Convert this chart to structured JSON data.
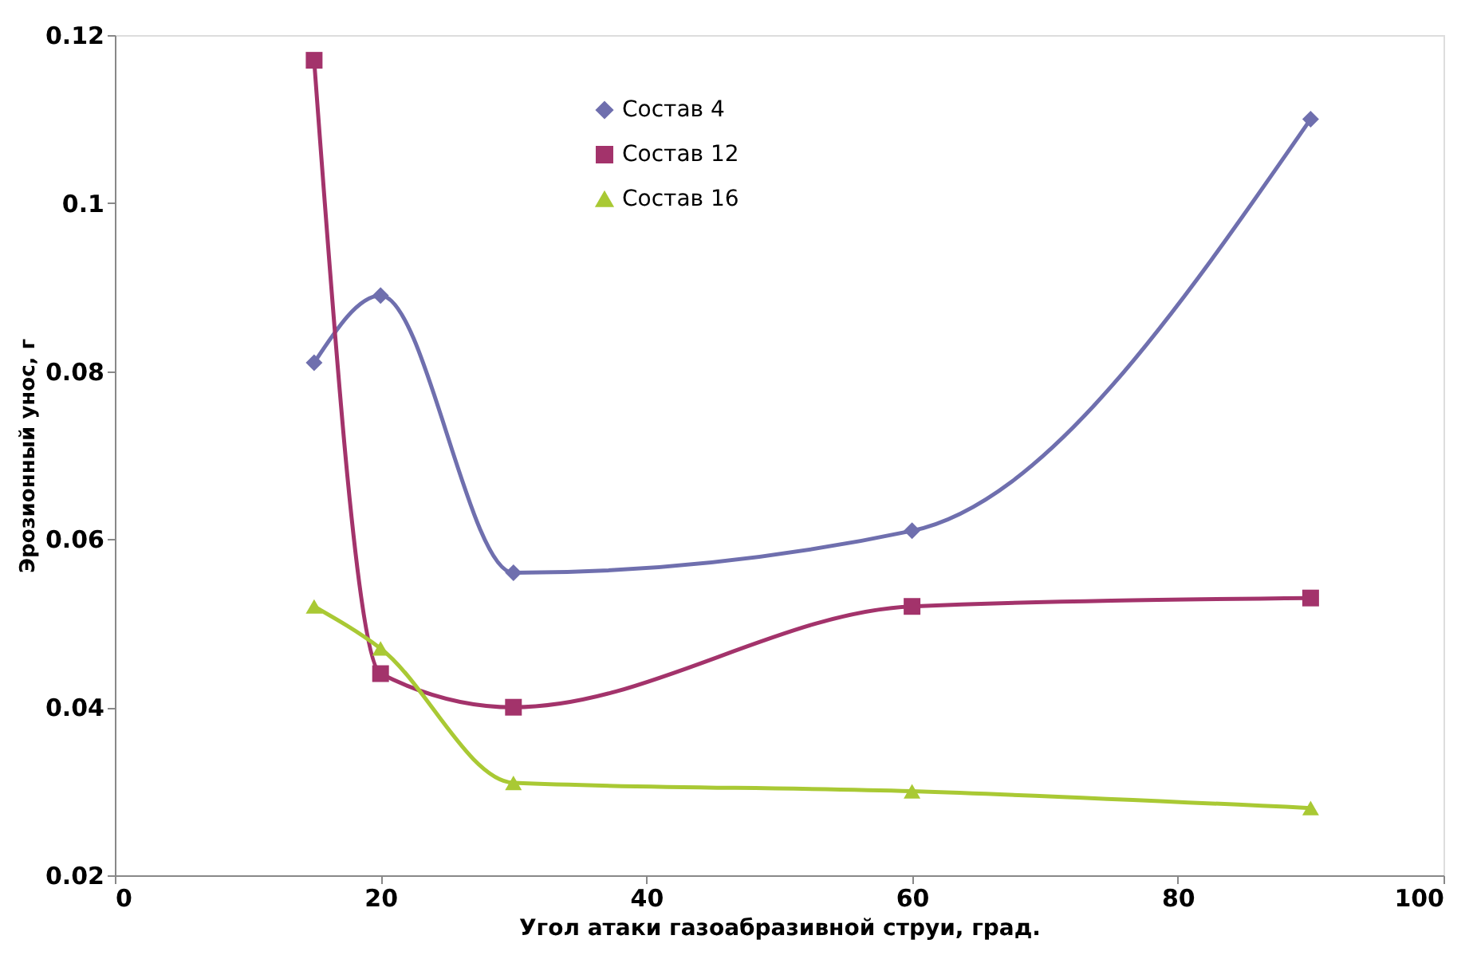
{
  "chart_data": {
    "type": "line",
    "xlabel": "Угол атаки газоабразивной струи, град.",
    "ylabel": "Эрозионный унос, г",
    "x": [
      15,
      20,
      30,
      60,
      90
    ],
    "series": [
      {
        "name": "Состав 4",
        "color": "#6f6fae",
        "marker": "diamond",
        "values": [
          0.081,
          0.089,
          0.056,
          0.061,
          0.11
        ]
      },
      {
        "name": "Состав 12",
        "color": "#a3336b",
        "marker": "square",
        "values": [
          0.117,
          0.044,
          0.04,
          0.052,
          0.053
        ]
      },
      {
        "name": "Состав 16",
        "color": "#a9c934",
        "marker": "triangle",
        "values": [
          0.052,
          0.047,
          0.031,
          0.03,
          0.028
        ]
      }
    ],
    "xlim": [
      0,
      100
    ],
    "xticks": [
      0,
      20,
      40,
      60,
      80,
      100
    ],
    "ylim": [
      0.02,
      0.12
    ],
    "yticks": [
      0.02,
      0.04,
      0.06,
      0.08,
      0.1,
      0.12
    ],
    "grid": false,
    "legend": "top",
    "line_style": "solid"
  }
}
